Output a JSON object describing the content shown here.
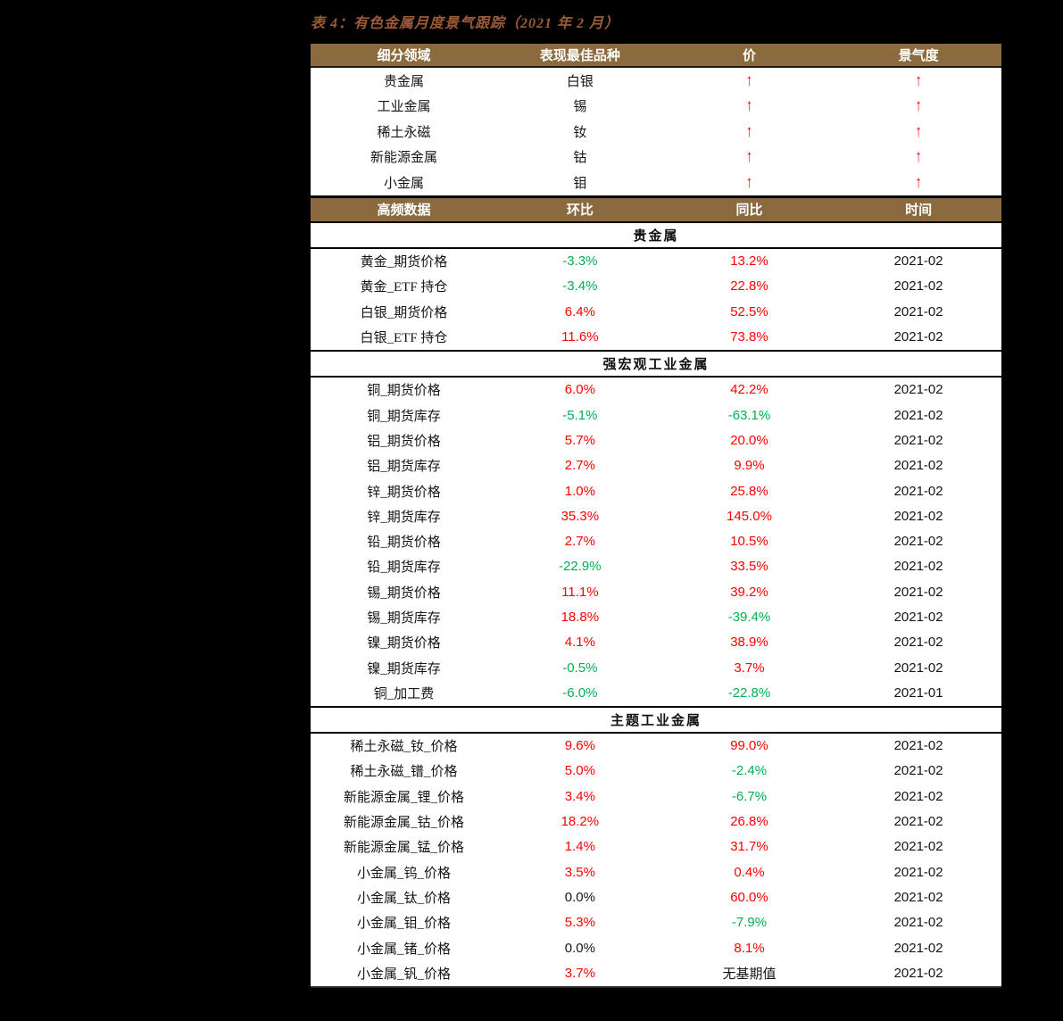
{
  "title": "表 4：有色金属月度景气跟踪（2021 年 2 月）",
  "colors": {
    "page_bg": "#000000",
    "table_bg": "#ffffff",
    "header_bg": "#8a6a3e",
    "header_text": "#ffffff",
    "title_text": "#9b5b38",
    "positive": "#fe0000",
    "negative": "#00b050",
    "neutral": "#151515"
  },
  "arrow_up": "↑",
  "summary": {
    "headers": [
      "细分领域",
      "表现最佳品种",
      "价",
      "景气度"
    ],
    "rows": [
      {
        "segment": "贵金属",
        "best": "白银",
        "price": "↑",
        "sentiment": "↑"
      },
      {
        "segment": "工业金属",
        "best": "锡",
        "price": "↑",
        "sentiment": "↑"
      },
      {
        "segment": "稀土永磁",
        "best": "钕",
        "price": "↑",
        "sentiment": "↑"
      },
      {
        "segment": "新能源金属",
        "best": "钴",
        "price": "↑",
        "sentiment": "↑"
      },
      {
        "segment": "小金属",
        "best": "钼",
        "price": "↑",
        "sentiment": "↑"
      }
    ]
  },
  "detail": {
    "headers": [
      "高频数据",
      "环比",
      "同比",
      "时间"
    ],
    "sections": [
      {
        "name": "贵金属",
        "rows": [
          {
            "label": "黄金_期货价格",
            "mom": "-3.3%",
            "mom_tone": "down",
            "yoy": "13.2%",
            "yoy_tone": "up",
            "date": "2021-02"
          },
          {
            "label": "黄金_ETF 持仓",
            "mom": "-3.4%",
            "mom_tone": "down",
            "yoy": "22.8%",
            "yoy_tone": "up",
            "date": "2021-02"
          },
          {
            "label": "白银_期货价格",
            "mom": "6.4%",
            "mom_tone": "up",
            "yoy": "52.5%",
            "yoy_tone": "up",
            "date": "2021-02"
          },
          {
            "label": "白银_ETF 持仓",
            "mom": "11.6%",
            "mom_tone": "up",
            "yoy": "73.8%",
            "yoy_tone": "up",
            "date": "2021-02"
          }
        ]
      },
      {
        "name": "强宏观工业金属",
        "rows": [
          {
            "label": "铜_期货价格",
            "mom": "6.0%",
            "mom_tone": "up",
            "yoy": "42.2%",
            "yoy_tone": "up",
            "date": "2021-02"
          },
          {
            "label": "铜_期货库存",
            "mom": "-5.1%",
            "mom_tone": "down",
            "yoy": "-63.1%",
            "yoy_tone": "down",
            "date": "2021-02"
          },
          {
            "label": "铝_期货价格",
            "mom": "5.7%",
            "mom_tone": "up",
            "yoy": "20.0%",
            "yoy_tone": "up",
            "date": "2021-02"
          },
          {
            "label": "铝_期货库存",
            "mom": "2.7%",
            "mom_tone": "up",
            "yoy": "9.9%",
            "yoy_tone": "up",
            "date": "2021-02"
          },
          {
            "label": "锌_期货价格",
            "mom": "1.0%",
            "mom_tone": "up",
            "yoy": "25.8%",
            "yoy_tone": "up",
            "date": "2021-02"
          },
          {
            "label": "锌_期货库存",
            "mom": "35.3%",
            "mom_tone": "up",
            "yoy": "145.0%",
            "yoy_tone": "up",
            "date": "2021-02"
          },
          {
            "label": "铅_期货价格",
            "mom": "2.7%",
            "mom_tone": "up",
            "yoy": "10.5%",
            "yoy_tone": "up",
            "date": "2021-02"
          },
          {
            "label": "铅_期货库存",
            "mom": "-22.9%",
            "mom_tone": "down",
            "yoy": "33.5%",
            "yoy_tone": "up",
            "date": "2021-02"
          },
          {
            "label": "锡_期货价格",
            "mom": "11.1%",
            "mom_tone": "up",
            "yoy": "39.2%",
            "yoy_tone": "up",
            "date": "2021-02"
          },
          {
            "label": "锡_期货库存",
            "mom": "18.8%",
            "mom_tone": "up",
            "yoy": "-39.4%",
            "yoy_tone": "down",
            "date": "2021-02"
          },
          {
            "label": "镍_期货价格",
            "mom": "4.1%",
            "mom_tone": "up",
            "yoy": "38.9%",
            "yoy_tone": "up",
            "date": "2021-02"
          },
          {
            "label": "镍_期货库存",
            "mom": "-0.5%",
            "mom_tone": "down",
            "yoy": "3.7%",
            "yoy_tone": "up",
            "date": "2021-02"
          },
          {
            "label": "铜_加工费",
            "mom": "-6.0%",
            "mom_tone": "down",
            "yoy": "-22.8%",
            "yoy_tone": "down",
            "date": "2021-01"
          }
        ]
      },
      {
        "name": "主题工业金属",
        "rows": [
          {
            "label": "稀土永磁_钕_价格",
            "mom": "9.6%",
            "mom_tone": "up",
            "yoy": "99.0%",
            "yoy_tone": "up",
            "date": "2021-02"
          },
          {
            "label": "稀土永磁_镨_价格",
            "mom": "5.0%",
            "mom_tone": "up",
            "yoy": "-2.4%",
            "yoy_tone": "down",
            "date": "2021-02"
          },
          {
            "label": "新能源金属_锂_价格",
            "mom": "3.4%",
            "mom_tone": "up",
            "yoy": "-6.7%",
            "yoy_tone": "down",
            "date": "2021-02"
          },
          {
            "label": "新能源金属_钴_价格",
            "mom": "18.2%",
            "mom_tone": "up",
            "yoy": "26.8%",
            "yoy_tone": "up",
            "date": "2021-02"
          },
          {
            "label": "新能源金属_锰_价格",
            "mom": "1.4%",
            "mom_tone": "up",
            "yoy": "31.7%",
            "yoy_tone": "up",
            "date": "2021-02"
          },
          {
            "label": "小金属_钨_价格",
            "mom": "3.5%",
            "mom_tone": "up",
            "yoy": "0.4%",
            "yoy_tone": "up",
            "date": "2021-02"
          },
          {
            "label": "小金属_钛_价格",
            "mom": "0.0%",
            "mom_tone": "flat",
            "yoy": "60.0%",
            "yoy_tone": "up",
            "date": "2021-02"
          },
          {
            "label": "小金属_钼_价格",
            "mom": "5.3%",
            "mom_tone": "up",
            "yoy": "-7.9%",
            "yoy_tone": "down",
            "date": "2021-02"
          },
          {
            "label": "小金属_锗_价格",
            "mom": "0.0%",
            "mom_tone": "flat",
            "yoy": "8.1%",
            "yoy_tone": "up",
            "date": "2021-02"
          },
          {
            "label": "小金属_钒_价格",
            "mom": "3.7%",
            "mom_tone": "up",
            "yoy": "无基期值",
            "yoy_tone": "na",
            "date": "2021-02"
          }
        ]
      }
    ]
  }
}
